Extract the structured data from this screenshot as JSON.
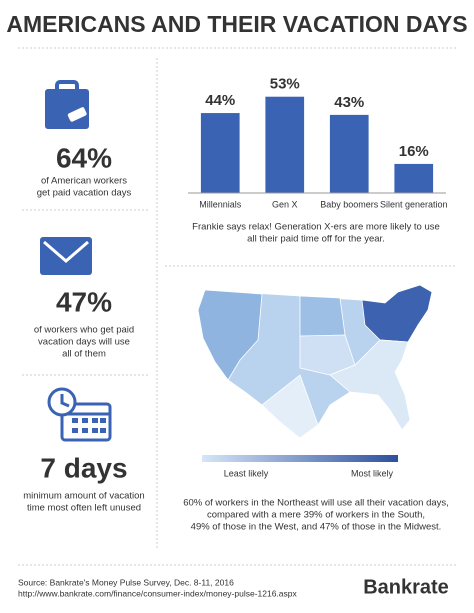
{
  "header": {
    "title": "AMERICANS AND THEIR VACATION DAYS"
  },
  "stats": [
    {
      "figure": "64%",
      "lines": [
        "of American workers",
        "get paid vacation days"
      ]
    },
    {
      "figure": "47%",
      "lines": [
        "of workers who get paid",
        "vacation days will use",
        "all of them"
      ]
    },
    {
      "figure": "7 days",
      "lines": [
        "minimum amount of vacation",
        "time most often left unused"
      ]
    }
  ],
  "chart_data": {
    "type": "bar",
    "categories": [
      "Millennials",
      "Gen X",
      "Baby boomers",
      "Silent generation"
    ],
    "values": [
      44,
      53,
      43,
      16
    ],
    "value_labels": [
      "44%",
      "53%",
      "43%",
      "16%"
    ],
    "color": "#3a63b4",
    "ylim": [
      0,
      60
    ],
    "caption": [
      "Frankie says relax! Generation X-ers are more likely to use",
      "all their paid time off for the year."
    ]
  },
  "map": {
    "legend": [
      "Least likely",
      "Most likely"
    ],
    "caption": [
      "60% of workers in the Northeast will use all their vacation days,",
      "compared with a mere 39% of workers in the South,",
      "49% of those in the West, and 47% of those in the Midwest."
    ]
  },
  "footer": {
    "source": [
      "Source: Bankrate's Money Pulse Survey, Dec. 8-11, 2016",
      "http://www.bankrate.com/finance/consumer-index/money-pulse-1216.aspx"
    ],
    "logo": "Bankrate"
  }
}
